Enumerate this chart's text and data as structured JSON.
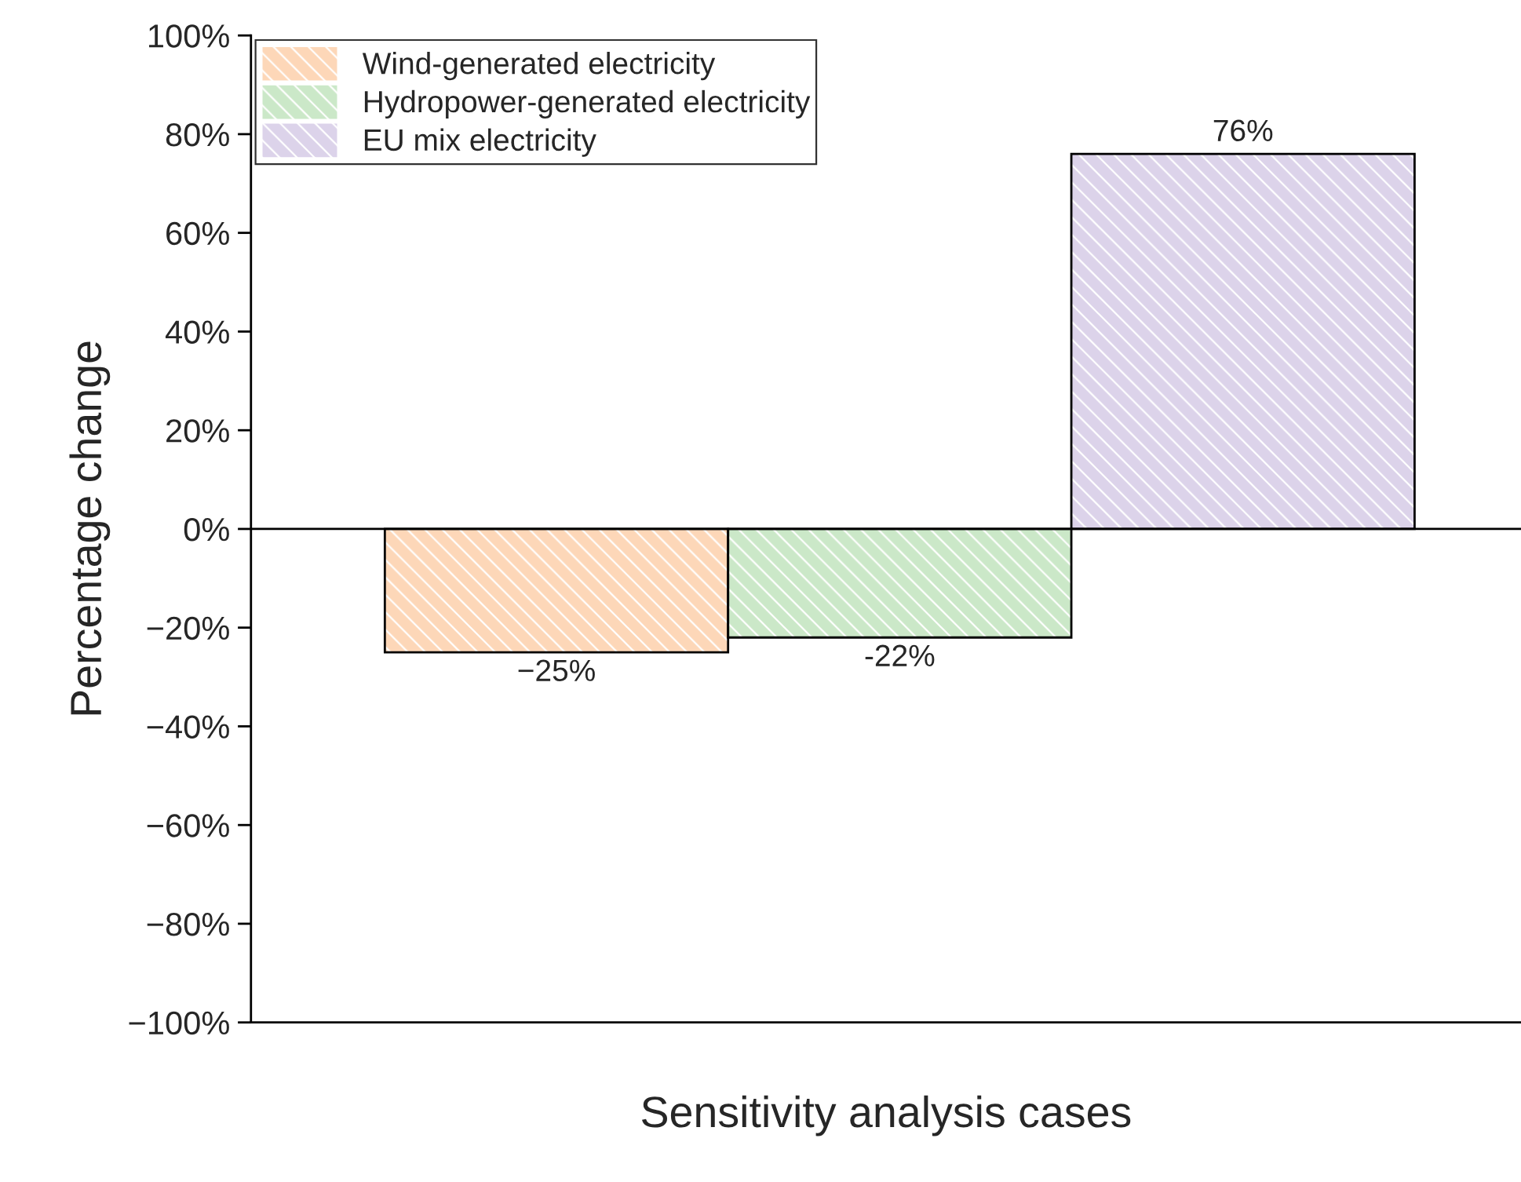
{
  "chart_data": {
    "type": "bar",
    "xlabel": "Sensitivity analysis cases",
    "ylabel": "Percentage change",
    "categories": [
      null,
      null,
      null
    ],
    "series": [
      {
        "name": "Wind-generated electricity",
        "color": "#fdd7b8",
        "values": [
          -25,
          null,
          null
        ],
        "value_labels": [
          "−25%",
          null,
          null
        ]
      },
      {
        "name": "Hydropower-generated electricity",
        "color": "#cbe8c8",
        "values": [
          null,
          -22,
          null
        ],
        "value_labels": [
          null,
          "-22%",
          null
        ]
      },
      {
        "name": "EU mix electricity",
        "color": "#dcd3ea",
        "values": [
          null,
          null,
          76
        ],
        "value_labels": [
          null,
          null,
          "76%"
        ]
      }
    ],
    "ylim": [
      -100,
      100
    ],
    "yticks": [
      {
        "value": -100,
        "label": "−100%"
      },
      {
        "value": -80,
        "label": "−80%"
      },
      {
        "value": -60,
        "label": "−60%"
      },
      {
        "value": -40,
        "label": "−40%"
      },
      {
        "value": -20,
        "label": "−20%"
      },
      {
        "value": 0,
        "label": "0%"
      },
      {
        "value": 20,
        "label": "20%"
      },
      {
        "value": 40,
        "label": "40%"
      },
      {
        "value": 60,
        "label": "60%"
      },
      {
        "value": 80,
        "label": "80%"
      },
      {
        "value": 100,
        "label": "100%"
      }
    ],
    "ref_lines": [
      {
        "axis": "y",
        "value": 0,
        "color": "#000000"
      }
    ],
    "legend": "top left",
    "grid": false
  }
}
